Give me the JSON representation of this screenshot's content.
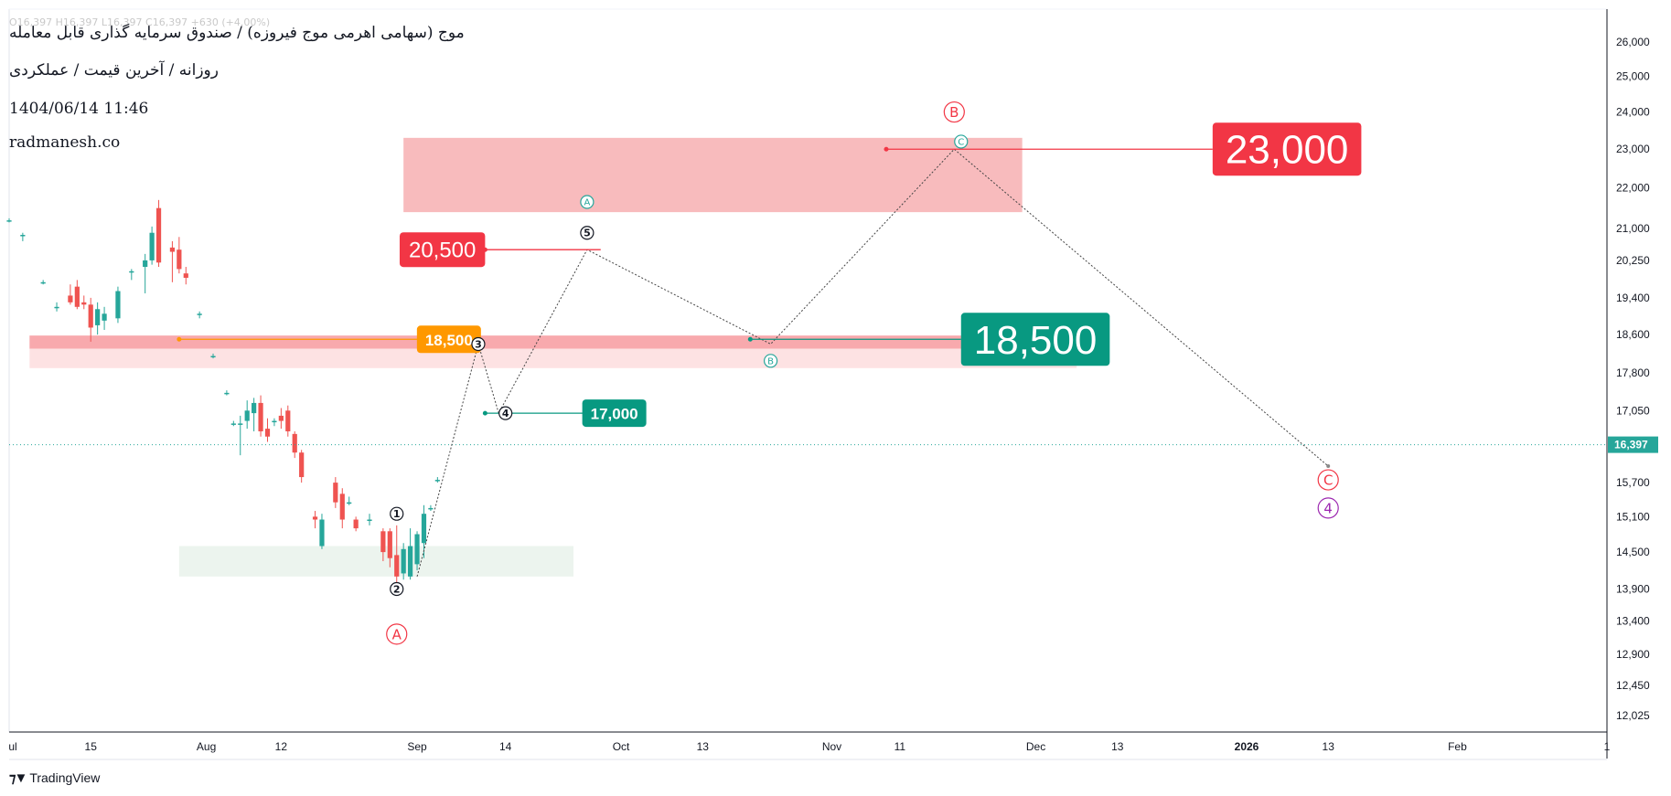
{
  "header": {
    "ohlc_text": "O16,397  H16,397  L16,397  C16,397  +630 (+4.00%)",
    "title": "موج (سهامی اهرمی موج فیروزه) / صندوق سرمایه گذاری قابل معامله",
    "subtitle": "روزانه / آخرین قیمت / عملکردی",
    "datetime": "1404/06/14 11:46",
    "website": "radmanesh.co"
  },
  "brand": {
    "icon": "tradingview-logo-icon",
    "label": "TradingView"
  },
  "colors": {
    "up": "#26a69a",
    "down": "#ef5350",
    "teal_label": "#089981",
    "red_label": "#f23645",
    "orange_label": "#ff9800",
    "purple": "#9c27b0"
  },
  "chart_data": {
    "type": "candlestick",
    "timeframe": "daily",
    "y_axis": {
      "scale": "log",
      "ticks": [
        26000,
        25000,
        24000,
        23000,
        22000,
        21000,
        20250,
        19400,
        18600,
        17800,
        17050,
        15700,
        15100,
        14500,
        13900,
        13400,
        12900,
        12450,
        12025
      ],
      "tick_labels": [
        "26,000",
        "25,000",
        "24,000",
        "23,000",
        "22,000",
        "21,000",
        "20,250",
        "19,400",
        "18,600",
        "17,800",
        "17,050",
        "15,700",
        "15,100",
        "14,500",
        "13,900",
        "13,400",
        "12,900",
        "12,450",
        "12,025"
      ],
      "range": [
        11800,
        27000
      ]
    },
    "x_axis": {
      "range": [
        "2025-07-03",
        "2026-02-23"
      ],
      "ticks": [
        {
          "date": "2025-07-01",
          "label": "ul"
        },
        {
          "date": "2025-07-15",
          "label": "15"
        },
        {
          "date": "2025-08-01",
          "label": "Aug"
        },
        {
          "date": "2025-08-12",
          "label": "12"
        },
        {
          "date": "2025-09-01",
          "label": "Sep"
        },
        {
          "date": "2025-09-14",
          "label": "14"
        },
        {
          "date": "2025-10-01",
          "label": "Oct"
        },
        {
          "date": "2025-10-13",
          "label": "13"
        },
        {
          "date": "2025-11-01",
          "label": "Nov"
        },
        {
          "date": "2025-11-11",
          "label": "11"
        },
        {
          "date": "2025-12-01",
          "label": "Dec"
        },
        {
          "date": "2025-12-13",
          "label": "13"
        },
        {
          "date": "2026-01-01",
          "label": "2026",
          "bold": true
        },
        {
          "date": "2026-01-13",
          "label": "13"
        },
        {
          "date": "2026-02-01",
          "label": "Feb"
        },
        {
          "date": "2026-02-23",
          "label": "1"
        }
      ]
    },
    "candles": [
      {
        "t": "2025-07-03",
        "o": 21200,
        "h": 21250,
        "l": 21150,
        "c": 21200
      },
      {
        "t": "2025-07-05",
        "o": 20850,
        "h": 20900,
        "l": 20700,
        "c": 20850
      },
      {
        "t": "2025-07-08",
        "o": 19750,
        "h": 19800,
        "l": 19700,
        "c": 19750
      },
      {
        "t": "2025-07-10",
        "o": 19200,
        "h": 19300,
        "l": 19100,
        "c": 19200
      },
      {
        "t": "2025-07-12",
        "o": 19450,
        "h": 19700,
        "l": 19250,
        "c": 19300
      },
      {
        "t": "2025-07-13",
        "o": 19650,
        "h": 19800,
        "l": 19150,
        "c": 19200
      },
      {
        "t": "2025-07-14",
        "o": 19300,
        "h": 19450,
        "l": 19150,
        "c": 19250
      },
      {
        "t": "2025-07-15",
        "o": 19250,
        "h": 19400,
        "l": 18450,
        "c": 18750
      },
      {
        "t": "2025-07-16",
        "o": 18800,
        "h": 19300,
        "l": 18600,
        "c": 19150
      },
      {
        "t": "2025-07-17",
        "o": 18900,
        "h": 19200,
        "l": 18700,
        "c": 19050
      },
      {
        "t": "2025-07-19",
        "o": 18950,
        "h": 19650,
        "l": 18850,
        "c": 19550
      },
      {
        "t": "2025-07-21",
        "o": 20000,
        "h": 20050,
        "l": 19800,
        "c": 20000
      },
      {
        "t": "2025-07-23",
        "o": 20100,
        "h": 20400,
        "l": 19500,
        "c": 20250
      },
      {
        "t": "2025-07-24",
        "o": 20250,
        "h": 21050,
        "l": 20150,
        "c": 20900
      },
      {
        "t": "2025-07-25",
        "o": 21500,
        "h": 21700,
        "l": 20100,
        "c": 20200
      },
      {
        "t": "2025-07-27",
        "o": 20550,
        "h": 20700,
        "l": 19750,
        "c": 20450
      },
      {
        "t": "2025-07-28",
        "o": 20500,
        "h": 20800,
        "l": 19950,
        "c": 20050
      },
      {
        "t": "2025-07-29",
        "o": 19950,
        "h": 20100,
        "l": 19700,
        "c": 19850
      },
      {
        "t": "2025-07-31",
        "o": 19050,
        "h": 19100,
        "l": 18950,
        "c": 19050
      },
      {
        "t": "2025-08-02",
        "o": 18150,
        "h": 18200,
        "l": 18100,
        "c": 18150
      },
      {
        "t": "2025-08-04",
        "o": 17400,
        "h": 17450,
        "l": 17350,
        "c": 17400
      },
      {
        "t": "2025-08-05",
        "o": 16800,
        "h": 16850,
        "l": 16750,
        "c": 16800
      },
      {
        "t": "2025-08-06",
        "o": 16800,
        "h": 16950,
        "l": 16200,
        "c": 16800
      },
      {
        "t": "2025-08-07",
        "o": 16850,
        "h": 17250,
        "l": 16700,
        "c": 17050
      },
      {
        "t": "2025-08-08",
        "o": 17000,
        "h": 17300,
        "l": 16650,
        "c": 17200
      },
      {
        "t": "2025-08-09",
        "o": 17200,
        "h": 17350,
        "l": 16550,
        "c": 16650
      },
      {
        "t": "2025-08-10",
        "o": 16700,
        "h": 16900,
        "l": 16450,
        "c": 16550
      },
      {
        "t": "2025-08-11",
        "o": 16850,
        "h": 16900,
        "l": 16750,
        "c": 16850
      },
      {
        "t": "2025-08-12",
        "o": 16950,
        "h": 17100,
        "l": 16700,
        "c": 16850
      },
      {
        "t": "2025-08-13",
        "o": 17050,
        "h": 17150,
        "l": 16550,
        "c": 16650
      },
      {
        "t": "2025-08-14",
        "o": 16600,
        "h": 16650,
        "l": 16150,
        "c": 16250
      },
      {
        "t": "2025-08-15",
        "o": 16250,
        "h": 16300,
        "l": 15700,
        "c": 15800
      },
      {
        "t": "2025-08-17",
        "o": 15100,
        "h": 15200,
        "l": 14900,
        "c": 15050
      },
      {
        "t": "2025-08-18",
        "o": 14600,
        "h": 15150,
        "l": 14550,
        "c": 15050
      },
      {
        "t": "2025-08-20",
        "o": 15700,
        "h": 15800,
        "l": 15250,
        "c": 15350
      },
      {
        "t": "2025-08-21",
        "o": 15500,
        "h": 15600,
        "l": 14900,
        "c": 15050
      },
      {
        "t": "2025-08-22",
        "o": 15350,
        "h": 15450,
        "l": 15300,
        "c": 15350
      },
      {
        "t": "2025-08-23",
        "o": 15050,
        "h": 15100,
        "l": 14850,
        "c": 14900
      },
      {
        "t": "2025-08-25",
        "o": 15050,
        "h": 15150,
        "l": 14950,
        "c": 15050
      },
      {
        "t": "2025-08-27",
        "o": 14850,
        "h": 14900,
        "l": 14350,
        "c": 14500
      },
      {
        "t": "2025-08-28",
        "o": 14850,
        "h": 14900,
        "l": 14250,
        "c": 14400
      },
      {
        "t": "2025-08-29",
        "o": 14450,
        "h": 14950,
        "l": 13900,
        "c": 14100
      },
      {
        "t": "2025-08-30",
        "o": 14150,
        "h": 14650,
        "l": 14050,
        "c": 14550
      },
      {
        "t": "2025-08-31",
        "o": 14100,
        "h": 14900,
        "l": 14050,
        "c": 14600
      },
      {
        "t": "2025-09-01",
        "o": 14300,
        "h": 14850,
        "l": 14200,
        "c": 14800
      },
      {
        "t": "2025-09-02",
        "o": 14650,
        "h": 15300,
        "l": 14400,
        "c": 15150
      },
      {
        "t": "2025-09-03",
        "o": 15250,
        "h": 15300,
        "l": 15200,
        "c": 15250
      },
      {
        "t": "2025-09-04",
        "o": 15750,
        "h": 15800,
        "l": 15700,
        "c": 15750
      }
    ],
    "zones": [
      {
        "from": "2025-08-30",
        "to": "2025-11-29",
        "low": 21400,
        "high": 23300,
        "color": "#f8bbbd"
      },
      {
        "from": "2025-07-06",
        "to": "2025-12-07",
        "low": 18300,
        "high": 18580,
        "color": "#f8a9ad"
      },
      {
        "from": "2025-07-06",
        "to": "2025-12-07",
        "low": 17900,
        "high": 18300,
        "color": "#fde2e3"
      },
      {
        "from": "2025-07-28",
        "to": "2025-09-24",
        "low": 14100,
        "high": 14600,
        "color": "#ecf4ee"
      }
    ],
    "levels": [
      {
        "value": 23000,
        "label": "23,000",
        "from": "2025-11-09",
        "to": "2025-12-27",
        "color": "#f23645",
        "size": "xl"
      },
      {
        "value": 20500,
        "label": "20,500",
        "from": "2025-09-11",
        "to": "2025-09-28",
        "color": "#f23645",
        "size": "md"
      },
      {
        "value": 18500,
        "label": "18,500",
        "from": "2025-10-20",
        "to": "2025-11-20",
        "color": "#089981",
        "size": "xl"
      },
      {
        "value": 18500,
        "label": "18,500",
        "from": "2025-07-28",
        "to": "2025-09-10",
        "color": "#ff9800",
        "size": "sm"
      },
      {
        "value": 17000,
        "label": "17,000",
        "from": "2025-09-11",
        "to": "2025-09-30",
        "color": "#089981",
        "size": "sm"
      }
    ],
    "current_price": {
      "value": 16397,
      "label": "16,397"
    },
    "projection_path": [
      {
        "t": "2025-09-01",
        "v": 14100
      },
      {
        "t": "2025-09-10",
        "v": 18400
      },
      {
        "t": "2025-09-13",
        "v": 17000
      },
      {
        "t": "2025-09-26",
        "v": 20500
      },
      {
        "t": "2025-10-23",
        "v": 18400
      },
      {
        "t": "2025-11-19",
        "v": 23000
      },
      {
        "t": "2026-01-13",
        "v": 16000
      }
    ],
    "wave_labels": [
      {
        "t": "2025-08-29",
        "v": 15150,
        "text": "1",
        "color": "#131722",
        "shape": "circle-filled"
      },
      {
        "t": "2025-08-29",
        "v": 13900,
        "text": "2",
        "color": "#131722",
        "shape": "circle-filled"
      },
      {
        "t": "2025-09-10",
        "v": 18400,
        "text": "3",
        "color": "#131722",
        "shape": "circle-filled"
      },
      {
        "t": "2025-09-14",
        "v": 17000,
        "text": "4",
        "color": "#131722",
        "shape": "circle-filled"
      },
      {
        "t": "2025-09-26",
        "v": 20900,
        "text": "5",
        "color": "#131722",
        "shape": "circle-filled"
      },
      {
        "t": "2025-09-26",
        "v": 21650,
        "text": "A",
        "color": "#26a69a",
        "shape": "circle-small"
      },
      {
        "t": "2025-10-23",
        "v": 18050,
        "text": "B",
        "color": "#26a69a",
        "shape": "circle-small"
      },
      {
        "t": "2025-11-20",
        "v": 23200,
        "text": "C",
        "color": "#26a69a",
        "shape": "circle-small"
      },
      {
        "t": "2025-08-29",
        "v": 13200,
        "text": "A",
        "color": "#f23645",
        "shape": "circle-large"
      },
      {
        "t": "2025-11-19",
        "v": 24000,
        "text": "B",
        "color": "#f23645",
        "shape": "circle-large"
      },
      {
        "t": "2026-01-13",
        "v": 15750,
        "text": "C",
        "color": "#f23645",
        "shape": "circle-large"
      },
      {
        "t": "2026-01-13",
        "v": 15250,
        "text": "4",
        "color": "#9c27b0",
        "shape": "circle-large"
      }
    ]
  }
}
